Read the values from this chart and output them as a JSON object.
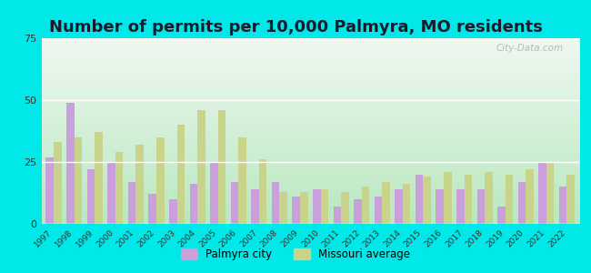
{
  "title": "Number of permits per 10,000 Palmyra, MO residents",
  "years": [
    1997,
    1998,
    1999,
    2000,
    2001,
    2002,
    2003,
    2004,
    2005,
    2006,
    2007,
    2008,
    2009,
    2010,
    2011,
    2012,
    2013,
    2014,
    2015,
    2016,
    2017,
    2018,
    2019,
    2020,
    2021,
    2022
  ],
  "palmyra": [
    27,
    49,
    22,
    25,
    17,
    12,
    10,
    16,
    25,
    17,
    14,
    17,
    11,
    14,
    7,
    10,
    11,
    14,
    20,
    14,
    14,
    14,
    7,
    17,
    25,
    15
  ],
  "missouri": [
    33,
    35,
    37,
    29,
    32,
    35,
    40,
    46,
    46,
    35,
    26,
    13,
    13,
    14,
    13,
    15,
    17,
    16,
    19,
    21,
    20,
    21,
    20,
    22,
    25,
    20
  ],
  "palmyra_color": "#c9a0dc",
  "missouri_color": "#c8d48a",
  "plot_bg_top": "#f0f8f0",
  "plot_bg_bottom": "#b8e8c0",
  "outer_background": "#00e8e8",
  "ylim": [
    0,
    75
  ],
  "yticks": [
    0,
    25,
    50,
    75
  ],
  "title_fontsize": 13,
  "legend_palmyra": "Palmyra city",
  "legend_missouri": "Missouri average",
  "bar_width": 0.38,
  "watermark": "City-Data.com"
}
